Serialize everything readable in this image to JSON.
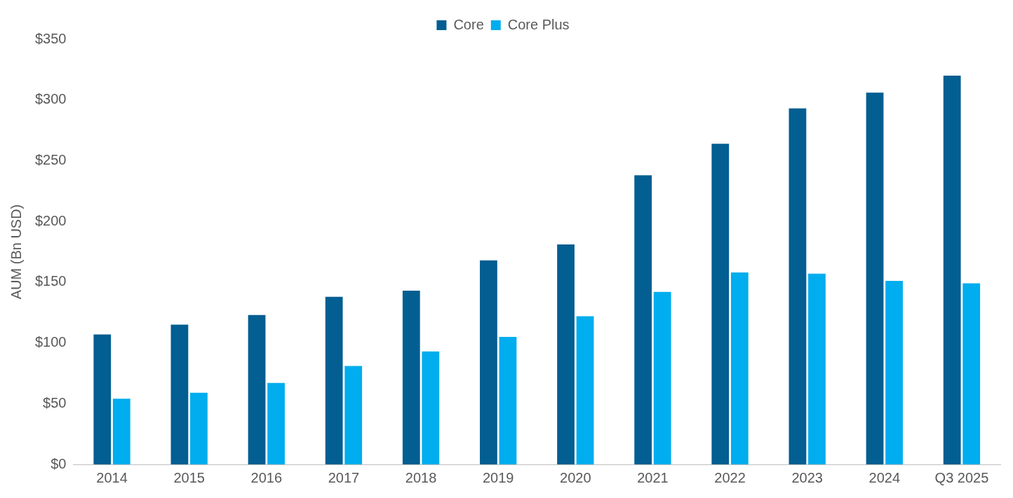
{
  "chart_data": {
    "type": "bar",
    "ylabel": "AUM (Bn USD)",
    "categories": [
      "2014",
      "2015",
      "2016",
      "2017",
      "2018",
      "2019",
      "2020",
      "2021",
      "2022",
      "2023",
      "2024",
      "Q3 2025"
    ],
    "series": [
      {
        "name": "Core",
        "color": "#035e91",
        "values": [
          107,
          115,
          123,
          138,
          143,
          168,
          181,
          238,
          264,
          293,
          306,
          320
        ]
      },
      {
        "name": "Core Plus",
        "color": "#00adee",
        "values": [
          54,
          59,
          67,
          81,
          93,
          105,
          122,
          142,
          158,
          157,
          151,
          149
        ]
      }
    ],
    "ylim": [
      0,
      350
    ],
    "yticks": [
      {
        "value": 0,
        "label": "$0"
      },
      {
        "value": 50,
        "label": "$50"
      },
      {
        "value": 100,
        "label": "$100"
      },
      {
        "value": 150,
        "label": "$150"
      },
      {
        "value": 200,
        "label": "$200"
      },
      {
        "value": 250,
        "label": "$250"
      },
      {
        "value": 300,
        "label": "$300"
      },
      {
        "value": 350,
        "label": "$350"
      }
    ],
    "grid": false,
    "legend": "top"
  }
}
